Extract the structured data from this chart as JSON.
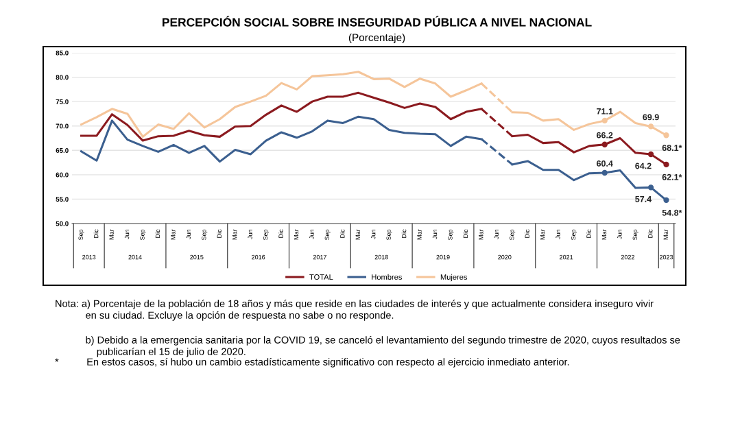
{
  "chart_data": {
    "type": "line",
    "title": "PERCEPCIÓN SOCIAL SOBRE INSEGURIDAD PÚBLICA A NIVEL NACIONAL",
    "subtitle": "(Porcentaje)",
    "categories": [
      "Sep",
      "Dic",
      "Mar",
      "Jun",
      "Sep",
      "Dic",
      "Mar",
      "Jun",
      "Sep",
      "Dic",
      "Mar",
      "Jun",
      "Sep",
      "Dic",
      "Mar",
      "Jun",
      "Sep",
      "Dic",
      "Mar",
      "Jun",
      "Sep",
      "Dic",
      "Mar",
      "Jun",
      "Sep",
      "Dic",
      "Mar",
      "Jun",
      "Sep",
      "Dic",
      "Mar",
      "Jun",
      "Sep",
      "Dic",
      "Mar",
      "Jun",
      "Sep",
      "Dic",
      "Mar"
    ],
    "series": [
      {
        "name": "TOTAL",
        "color": "#8b1a1f",
        "values": [
          68.0,
          68.0,
          72.4,
          70.2,
          67.0,
          67.9,
          68.0,
          69.0,
          68.1,
          67.8,
          69.9,
          70.0,
          72.3,
          74.2,
          72.9,
          75.0,
          76.0,
          76.0,
          76.8,
          75.8,
          74.8,
          73.7,
          74.6,
          73.9,
          71.4,
          72.9,
          73.5,
          null,
          67.9,
          68.2,
          66.5,
          66.7,
          64.6,
          65.9,
          66.2,
          67.5,
          64.5,
          64.2,
          62.1
        ],
        "value_labels": [
          null,
          null,
          null,
          null,
          null,
          null,
          null,
          null,
          null,
          null,
          null,
          null,
          null,
          null,
          null,
          null,
          null,
          null,
          null,
          null,
          null,
          null,
          null,
          null,
          null,
          null,
          null,
          null,
          null,
          null,
          null,
          null,
          null,
          null,
          "66.2",
          null,
          null,
          "64.2",
          "62.1*"
        ]
      },
      {
        "name": "Hombres",
        "color": "#3b5f8f",
        "values": [
          64.8,
          62.9,
          71.1,
          67.2,
          65.9,
          64.7,
          66.1,
          64.5,
          65.9,
          62.7,
          65.1,
          64.2,
          67.0,
          68.7,
          67.6,
          68.9,
          71.1,
          70.6,
          71.9,
          71.4,
          69.2,
          68.6,
          68.4,
          68.3,
          65.9,
          67.8,
          67.3,
          null,
          62.1,
          62.8,
          61.0,
          61.0,
          58.9,
          60.3,
          60.4,
          60.9,
          57.3,
          57.4,
          54.8
        ],
        "value_labels": [
          null,
          null,
          null,
          null,
          null,
          null,
          null,
          null,
          null,
          null,
          null,
          null,
          null,
          null,
          null,
          null,
          null,
          null,
          null,
          null,
          null,
          null,
          null,
          null,
          null,
          null,
          null,
          null,
          null,
          null,
          null,
          null,
          null,
          null,
          "60.4",
          null,
          null,
          "57.4",
          "54.8*"
        ]
      },
      {
        "name": "Mujeres",
        "color": "#f5c59a",
        "values": [
          70.3,
          71.8,
          73.5,
          72.5,
          67.8,
          70.3,
          69.4,
          72.6,
          69.7,
          71.4,
          73.9,
          75.0,
          76.2,
          78.8,
          77.5,
          80.2,
          80.4,
          80.6,
          81.1,
          79.6,
          79.7,
          78.0,
          79.7,
          78.7,
          76.0,
          77.3,
          78.7,
          null,
          72.8,
          72.7,
          71.1,
          71.4,
          69.2,
          70.4,
          71.1,
          72.9,
          70.6,
          69.9,
          68.1
        ],
        "value_labels": [
          null,
          null,
          null,
          null,
          null,
          null,
          null,
          null,
          null,
          null,
          null,
          null,
          null,
          null,
          null,
          null,
          null,
          null,
          null,
          null,
          null,
          null,
          null,
          null,
          null,
          null,
          null,
          null,
          null,
          null,
          null,
          null,
          null,
          null,
          "71.1",
          null,
          null,
          "69.9",
          "68.1*"
        ]
      }
    ],
    "ylim": [
      50,
      85
    ],
    "yticks": [
      {
        "value": 50,
        "label": "50.0"
      },
      {
        "value": 55,
        "label": "55.0"
      },
      {
        "value": 60,
        "label": "60.0"
      },
      {
        "value": 65,
        "label": "65.0"
      },
      {
        "value": 70,
        "label": "70.0"
      },
      {
        "value": 75,
        "label": "75.0"
      },
      {
        "value": 80,
        "label": "80.0"
      },
      {
        "value": 85,
        "label": "85.0"
      }
    ],
    "grid": "y",
    "legend": "bottom",
    "line_style": "solid",
    "annotations": [
      "2013",
      "2014",
      "2015",
      "2016",
      "2017",
      "2018",
      "2019",
      "2020",
      "2021",
      "2022",
      "2023",
      "Nota: a) Porcentaje de la población de 18 años y más que reside en las ciudades de interés y que actualmente considera inseguro vivir\n           en su ciudad. Excluye la opción de respuesta no sabe o no responde.",
      "           b) Debido a la emergencia sanitaria por la COVID 19, se canceló el levantamiento del segundo trimestre de 2020, cuyos resultados se\n               publicarían el 15 de julio de 2020.",
      "*          En estos casos, sí hubo un cambio estadísticamente significativo con respecto al ejercicio inmediato anterior."
    ]
  }
}
